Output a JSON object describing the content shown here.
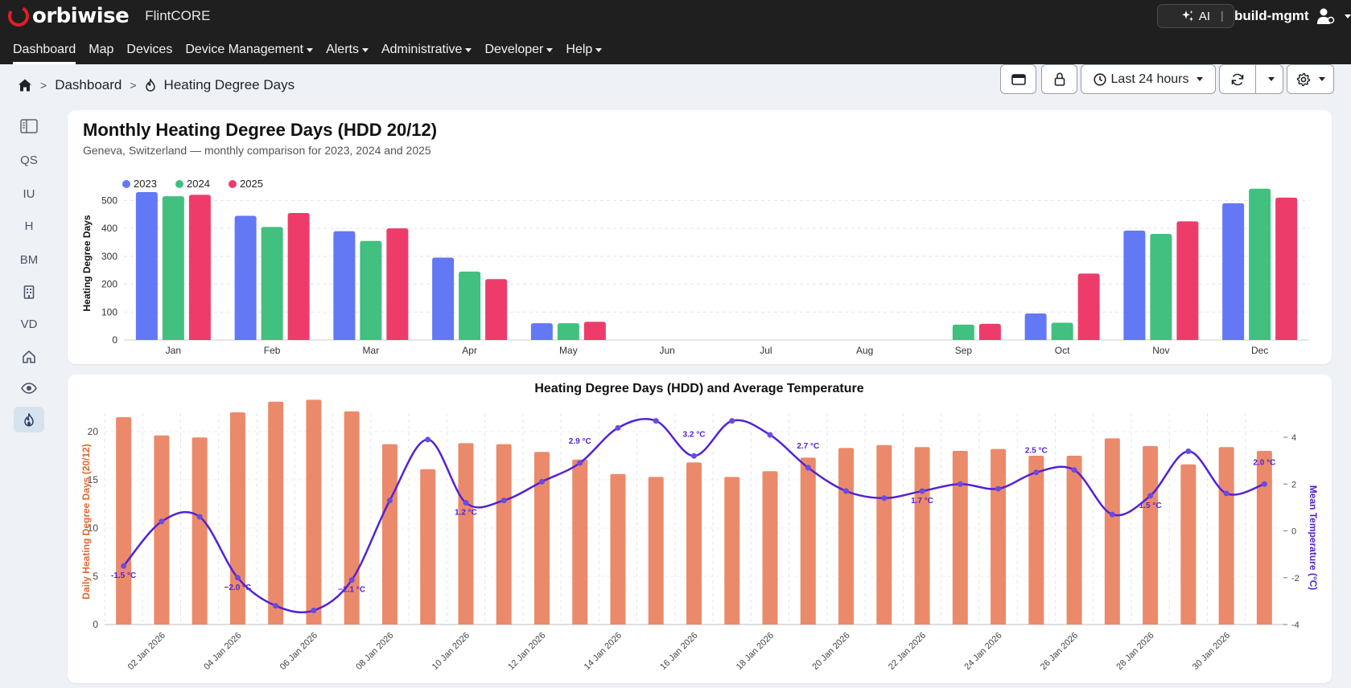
{
  "brand": {
    "name": "orbiwise",
    "app": "FlintCORE"
  },
  "header": {
    "ai_label": "AI",
    "separator": "|",
    "user": "build-mgmt"
  },
  "nav": [
    {
      "label": "Dashboard",
      "active": true,
      "dropdown": false
    },
    {
      "label": "Map",
      "active": false,
      "dropdown": false
    },
    {
      "label": "Devices",
      "active": false,
      "dropdown": false
    },
    {
      "label": "Device Management",
      "active": false,
      "dropdown": true
    },
    {
      "label": "Alerts",
      "active": false,
      "dropdown": true
    },
    {
      "label": "Administrative",
      "active": false,
      "dropdown": true
    },
    {
      "label": "Developer",
      "active": false,
      "dropdown": true
    },
    {
      "label": "Help",
      "active": false,
      "dropdown": true
    }
  ],
  "breadcrumb": {
    "sep": ">",
    "dashboard": "Dashboard",
    "current": "Heating Degree Days"
  },
  "toolbar": {
    "time_range": "Last 24 hours"
  },
  "sidebar": {
    "items": [
      {
        "label": "",
        "icon": "sidebar-toggle-icon"
      },
      {
        "label": "QS",
        "icon": ""
      },
      {
        "label": "IU",
        "icon": ""
      },
      {
        "label": "H",
        "icon": ""
      },
      {
        "label": "BM",
        "icon": ""
      },
      {
        "label": "",
        "icon": "building-icon"
      },
      {
        "label": "VD",
        "icon": ""
      },
      {
        "label": "",
        "icon": "home-icon"
      },
      {
        "label": "",
        "icon": "eye-icon"
      },
      {
        "label": "",
        "icon": "flame-icon"
      }
    ]
  },
  "card1": {
    "title": "Monthly Heating Degree Days (HDD 20/12)",
    "subtitle": "Geneva, Switzerland — monthly comparison for 2023, 2024 and 2025"
  },
  "card2": {
    "title": "Heating Degree Days (HDD) and Average Temperature"
  },
  "colors": {
    "y2023": "#6378f5",
    "y2024": "#41c07f",
    "y2025": "#ee3c6a",
    "hdd_bar": "#eb8a6b",
    "temp_line": "#5222d6"
  },
  "chart_data": [
    {
      "type": "bar",
      "title": "Monthly Heating Degree Days (HDD 20/12)",
      "ylabel": "Heating Degree Days",
      "xlabel": "",
      "ylim": [
        0,
        550
      ],
      "yticks": [
        0,
        100,
        200,
        300,
        400,
        500
      ],
      "grid": true,
      "legend": "top-left",
      "categories": [
        "Jan",
        "Feb",
        "Mar",
        "Apr",
        "May",
        "Jun",
        "Jul",
        "Aug",
        "Sep",
        "Oct",
        "Nov",
        "Dec"
      ],
      "series": [
        {
          "name": "2023",
          "color": "#6378f5",
          "values": [
            530,
            445,
            390,
            295,
            60,
            0,
            0,
            0,
            0,
            95,
            392,
            490
          ]
        },
        {
          "name": "2024",
          "color": "#41c07f",
          "values": [
            515,
            405,
            355,
            245,
            60,
            0,
            0,
            0,
            55,
            62,
            380,
            542
          ]
        },
        {
          "name": "2025",
          "color": "#ee3c6a",
          "values": [
            520,
            455,
            400,
            218,
            65,
            0,
            0,
            0,
            58,
            238,
            425,
            510
          ]
        }
      ]
    },
    {
      "type": "bar",
      "title": "Heating Degree Days (HDD) and Average Temperature",
      "ylabel": "Daily Heating Degree Days (20/12)",
      "y2label": "Mean Temperature (°C)",
      "ylim": [
        0,
        23
      ],
      "yticks": [
        0,
        5,
        10,
        15,
        20
      ],
      "y2lim": [
        -4,
        4
      ],
      "y2ticks": [
        -4,
        -2,
        0,
        2,
        4
      ],
      "grid": true,
      "x": [
        "01 Jan 2026",
        "02 Jan 2026",
        "03 Jan 2026",
        "04 Jan 2026",
        "05 Jan 2026",
        "06 Jan 2026",
        "07 Jan 2026",
        "08 Jan 2026",
        "09 Jan 2026",
        "10 Jan 2026",
        "11 Jan 2026",
        "12 Jan 2026",
        "13 Jan 2026",
        "14 Jan 2026",
        "15 Jan 2026",
        "16 Jan 2026",
        "17 Jan 2026",
        "18 Jan 2026",
        "19 Jan 2026",
        "20 Jan 2026",
        "21 Jan 2026",
        "22 Jan 2026",
        "23 Jan 2026",
        "24 Jan 2026",
        "25 Jan 2026",
        "26 Jan 2026",
        "27 Jan 2026",
        "28 Jan 2026",
        "29 Jan 2026",
        "30 Jan 2026",
        "31 Jan 2026"
      ],
      "xticks": [
        "02 Jan 2026",
        "04 Jan 2026",
        "06 Jan 2026",
        "08 Jan 2026",
        "10 Jan 2026",
        "12 Jan 2026",
        "14 Jan 2026",
        "16 Jan 2026",
        "18 Jan 2026",
        "20 Jan 2026",
        "22 Jan 2026",
        "24 Jan 2026",
        "26 Jan 2026",
        "28 Jan 2026",
        "30 Jan 2026"
      ],
      "hdd": [
        21.5,
        19.6,
        19.4,
        22.0,
        23.1,
        23.3,
        22.1,
        18.7,
        16.1,
        18.8,
        18.7,
        17.9,
        17.1,
        15.6,
        15.3,
        16.8,
        15.3,
        15.9,
        17.3,
        18.3,
        18.6,
        18.4,
        18.0,
        18.2,
        17.5,
        17.5,
        19.3,
        18.5,
        16.6,
        18.4,
        18.0
      ],
      "temp": [
        -1.5,
        0.4,
        0.6,
        -2.0,
        -3.2,
        -3.4,
        -2.1,
        1.3,
        3.9,
        1.2,
        1.3,
        2.1,
        2.9,
        4.4,
        4.7,
        3.2,
        4.7,
        4.1,
        2.7,
        1.7,
        1.4,
        1.7,
        2.0,
        1.8,
        2.5,
        2.6,
        0.7,
        1.5,
        3.4,
        1.6,
        2.0
      ],
      "annotations": [
        {
          "x": "01 Jan 2026",
          "label": "-1.5 °C"
        },
        {
          "x": "04 Jan 2026",
          "label": "−2.0 °C"
        },
        {
          "x": "07 Jan 2026",
          "label": "−2.1 °C"
        },
        {
          "x": "10 Jan 2026",
          "label": "1.2 °C"
        },
        {
          "x": "13 Jan 2026",
          "label": "2.9 °C"
        },
        {
          "x": "16 Jan 2026",
          "label": "3.2 °C"
        },
        {
          "x": "19 Jan 2026",
          "label": "2.7 °C"
        },
        {
          "x": "22 Jan 2026",
          "label": "1.7 °C"
        },
        {
          "x": "25 Jan 2026",
          "label": "2.5 °C"
        },
        {
          "x": "28 Jan 2026",
          "label": "1.5 °C"
        },
        {
          "x": "31 Jan 2026",
          "label": "2.0 °C"
        }
      ]
    }
  ]
}
